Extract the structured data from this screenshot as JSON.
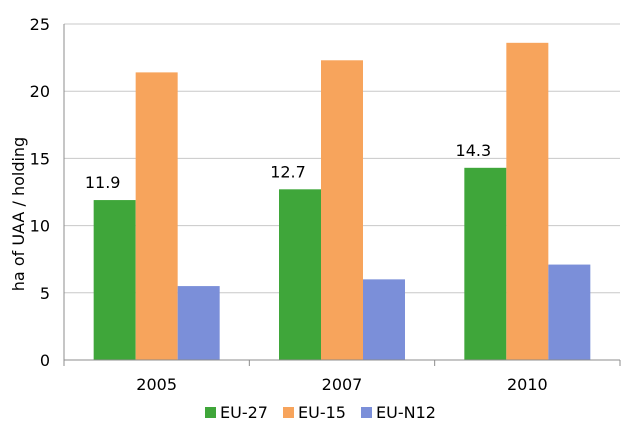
{
  "chart_data": {
    "type": "bar",
    "categories": [
      "2005",
      "2007",
      "2010"
    ],
    "series": [
      {
        "name": "EU-27",
        "values": [
          11.9,
          12.7,
          14.3
        ],
        "color": "#3fa63a"
      },
      {
        "name": "EU-15",
        "values": [
          21.4,
          22.3,
          23.6
        ],
        "color": "#f7a45c"
      },
      {
        "name": "EU-N12",
        "values": [
          5.5,
          6.0,
          7.1
        ],
        "color": "#7b8fd9"
      }
    ],
    "data_labels": {
      "series": "EU-27",
      "texts": [
        "11.9",
        "12.7",
        "14.3"
      ]
    },
    "ylabel": "ha of UAA / holding",
    "xlabel": "",
    "title": "",
    "ylim": [
      0,
      25
    ],
    "yticks": [
      "0",
      "5",
      "10",
      "15",
      "20",
      "25"
    ],
    "grid": true,
    "legend_position": "bottom"
  }
}
